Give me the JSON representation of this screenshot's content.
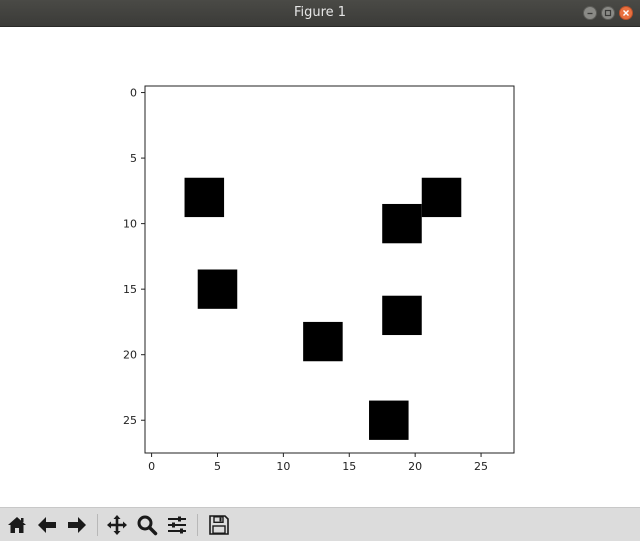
{
  "window": {
    "title": "Figure 1"
  },
  "chart_data": {
    "type": "heatmap",
    "colormap": "gray_r",
    "grid_size": [
      28,
      28
    ],
    "x_ticks": [
      0,
      5,
      10,
      15,
      20,
      25
    ],
    "y_ticks": [
      0,
      5,
      10,
      15,
      20,
      25
    ],
    "xlim": [
      -0.5,
      27.5
    ],
    "ylim": [
      27.5,
      -0.5
    ],
    "filled_blocks": [
      {
        "col": 4,
        "row": 8
      },
      {
        "col": 22,
        "row": 8
      },
      {
        "col": 19,
        "row": 10
      },
      {
        "col": 5,
        "row": 15
      },
      {
        "col": 19,
        "row": 17
      },
      {
        "col": 13,
        "row": 19
      },
      {
        "col": 18,
        "row": 25
      }
    ],
    "block_span": 3,
    "fill_color": "#000000",
    "background_color": "#ffffff"
  },
  "toolbar": {
    "buttons": [
      {
        "name": "home-button",
        "icon": "home-icon"
      },
      {
        "name": "back-button",
        "icon": "arrow-left-icon"
      },
      {
        "name": "forward-button",
        "icon": "arrow-right-icon"
      },
      {
        "name": "pan-button",
        "icon": "move-icon"
      },
      {
        "name": "zoom-button",
        "icon": "magnifier-icon"
      },
      {
        "name": "configure-subplots-button",
        "icon": "sliders-icon"
      },
      {
        "name": "save-button",
        "icon": "floppy-disk-icon"
      }
    ]
  }
}
